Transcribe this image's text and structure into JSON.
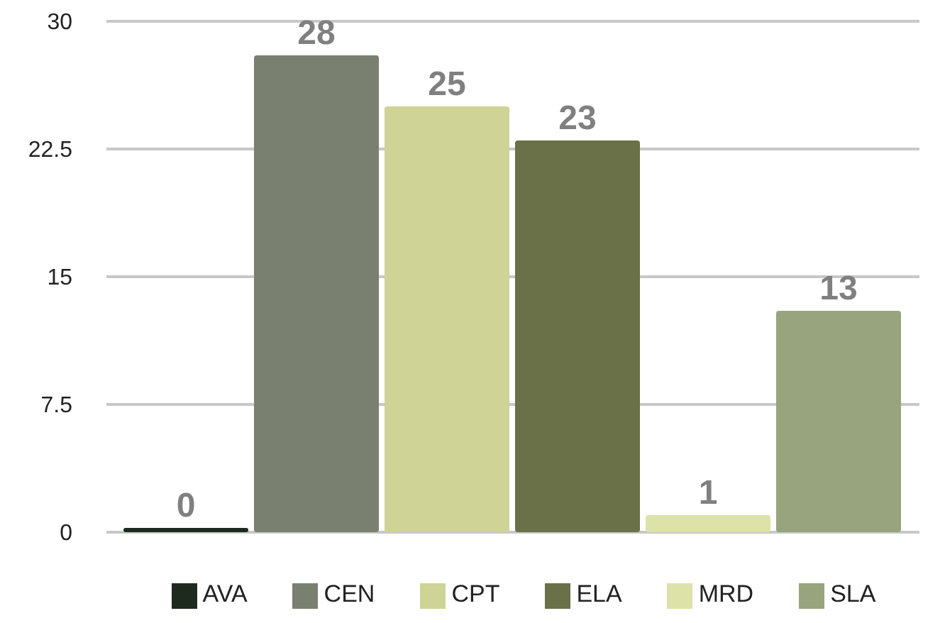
{
  "chart_data": {
    "type": "bar",
    "categories": [
      null
    ],
    "series": [
      {
        "name": "AVA",
        "color": "#1f2a1f",
        "values": [
          0
        ]
      },
      {
        "name": "CEN",
        "color": "#7a8070",
        "values": [
          28
        ]
      },
      {
        "name": "CPT",
        "color": "#cfd395",
        "values": [
          25
        ]
      },
      {
        "name": "ELA",
        "color": "#6a7048",
        "values": [
          23
        ]
      },
      {
        "name": "MRD",
        "color": "#dde2a8",
        "values": [
          1
        ]
      },
      {
        "name": "SLA",
        "color": "#98a47e",
        "values": [
          13
        ]
      }
    ],
    "ylim": [
      0,
      30
    ],
    "yticks": [
      0,
      7.5,
      15,
      22.5,
      30
    ],
    "grid": "y",
    "legend": "bottom",
    "tick_labels": "y",
    "data_labels": true
  }
}
